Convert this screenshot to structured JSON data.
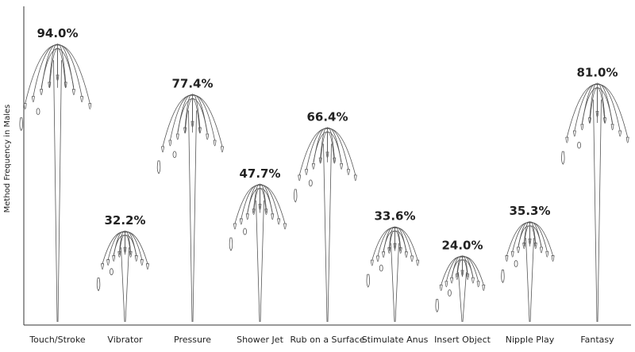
{
  "chart_data": {
    "type": "bar",
    "ylabel": "Method Frequency in Males",
    "categories": [
      "Touch/Stroke",
      "Vibrator",
      "Pressure",
      "Shower Jet",
      "Rub on a Surface",
      "Stimulate Anus",
      "Insert Object",
      "Nipple Play",
      "Fantasy"
    ],
    "values": [
      94.0,
      32.2,
      77.4,
      47.7,
      66.4,
      33.6,
      24.0,
      35.3,
      81.0
    ],
    "value_labels": [
      "94.0%",
      "32.2%",
      "77.4%",
      "47.7%",
      "66.4%",
      "33.6%",
      "24.0%",
      "35.3%",
      "81.0%"
    ],
    "ylim": [
      0,
      100
    ],
    "grid": false,
    "legend": "none"
  }
}
